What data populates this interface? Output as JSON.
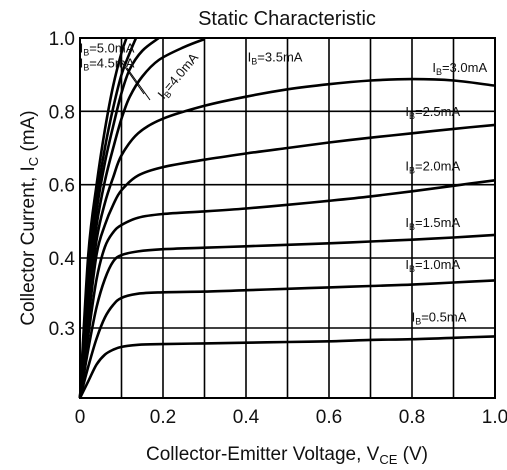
{
  "chart_data": {
    "type": "line",
    "title": "Static Characteristic",
    "xlabel": "Collector-Emitter Voltage, V",
    "xlabel_sub": "CE",
    "xlabel_unit": " (V)",
    "ylabel": "Collector Current, I",
    "ylabel_sub": "C",
    "ylabel_unit": " (mA)",
    "xlim": [
      0,
      1.0
    ],
    "ylim": [
      0.2,
      1.0
    ],
    "grid": true,
    "x_ticks": [
      {
        "value": 0,
        "label": "0"
      },
      {
        "value": 0.2,
        "label": "0.2"
      },
      {
        "value": 0.4,
        "label": "0.4"
      },
      {
        "value": 0.6,
        "label": "0.6"
      },
      {
        "value": 0.8,
        "label": "0.8"
      },
      {
        "value": 1.0,
        "label": "1.0"
      }
    ],
    "y_ticks": [
      {
        "value": 0.3,
        "label": "0.3"
      },
      {
        "value": 0.4,
        "label": "0.4"
      },
      {
        "value": 0.6,
        "label": "0.6"
      },
      {
        "value": 0.8,
        "label": "0.8"
      },
      {
        "value": 1.0,
        "label": "1.0"
      }
    ],
    "series": [
      {
        "name": "I",
        "sub": "B",
        "suffix": "=0.5mA",
        "points": [
          [
            0.0,
            0.2
          ],
          [
            0.02,
            0.224
          ],
          [
            0.04,
            0.248
          ],
          [
            0.06,
            0.262
          ],
          [
            0.08,
            0.269
          ],
          [
            0.1,
            0.273
          ],
          [
            0.14,
            0.276
          ],
          [
            0.2,
            0.277
          ],
          [
            0.3,
            0.278
          ],
          [
            0.4,
            0.279
          ],
          [
            0.5,
            0.28
          ],
          [
            0.6,
            0.281
          ],
          [
            0.7,
            0.283
          ],
          [
            0.8,
            0.284
          ],
          [
            0.9,
            0.286
          ],
          [
            1.0,
            0.288
          ]
        ],
        "label_at": [
          0.865,
          0.309
        ]
      },
      {
        "name": "I",
        "sub": "B",
        "suffix": "=1.0mA",
        "points": [
          [
            0.0,
            0.2
          ],
          [
            0.02,
            0.245
          ],
          [
            0.04,
            0.285
          ],
          [
            0.06,
            0.315
          ],
          [
            0.08,
            0.333
          ],
          [
            0.1,
            0.343
          ],
          [
            0.14,
            0.349
          ],
          [
            0.2,
            0.351
          ],
          [
            0.3,
            0.352
          ],
          [
            0.4,
            0.354
          ],
          [
            0.5,
            0.356
          ],
          [
            0.6,
            0.358
          ],
          [
            0.7,
            0.36
          ],
          [
            0.8,
            0.362
          ],
          [
            0.9,
            0.365
          ],
          [
            1.0,
            0.368
          ]
        ],
        "label_at": [
          0.85,
          0.384
        ]
      },
      {
        "name": "I",
        "sub": "B",
        "suffix": "=1.5mA",
        "points": [
          [
            0.0,
            0.2
          ],
          [
            0.02,
            0.27
          ],
          [
            0.04,
            0.33
          ],
          [
            0.06,
            0.37
          ],
          [
            0.08,
            0.395
          ],
          [
            0.1,
            0.408
          ],
          [
            0.14,
            0.418
          ],
          [
            0.2,
            0.424
          ],
          [
            0.3,
            0.428
          ],
          [
            0.4,
            0.432
          ],
          [
            0.5,
            0.436
          ],
          [
            0.6,
            0.44
          ],
          [
            0.7,
            0.445
          ],
          [
            0.8,
            0.45
          ],
          [
            0.9,
            0.456
          ],
          [
            1.0,
            0.463
          ]
        ],
        "label_at": [
          0.85,
          0.484
        ]
      },
      {
        "name": "I",
        "sub": "B",
        "suffix": "=2.0mA",
        "points": [
          [
            0.0,
            0.2
          ],
          [
            0.02,
            0.29
          ],
          [
            0.04,
            0.37
          ],
          [
            0.06,
            0.43
          ],
          [
            0.08,
            0.47
          ],
          [
            0.1,
            0.49
          ],
          [
            0.14,
            0.51
          ],
          [
            0.2,
            0.52
          ],
          [
            0.3,
            0.527
          ],
          [
            0.4,
            0.535
          ],
          [
            0.5,
            0.545
          ],
          [
            0.6,
            0.556
          ],
          [
            0.7,
            0.568
          ],
          [
            0.8,
            0.582
          ],
          [
            0.9,
            0.597
          ],
          [
            1.0,
            0.612
          ]
        ],
        "label_at": [
          0.85,
          0.638
        ]
      },
      {
        "name": "I",
        "sub": "B",
        "suffix": "=2.5mA",
        "points": [
          [
            0.0,
            0.2
          ],
          [
            0.02,
            0.31
          ],
          [
            0.04,
            0.41
          ],
          [
            0.06,
            0.49
          ],
          [
            0.08,
            0.545
          ],
          [
            0.1,
            0.585
          ],
          [
            0.14,
            0.625
          ],
          [
            0.2,
            0.648
          ],
          [
            0.3,
            0.668
          ],
          [
            0.4,
            0.685
          ],
          [
            0.5,
            0.7
          ],
          [
            0.6,
            0.715
          ],
          [
            0.7,
            0.728
          ],
          [
            0.8,
            0.74
          ],
          [
            0.9,
            0.752
          ],
          [
            1.0,
            0.763
          ]
        ],
        "label_at": [
          0.85,
          0.787
        ]
      },
      {
        "name": "I",
        "sub": "B",
        "suffix": "=3.0mA",
        "points": [
          [
            0.0,
            0.2
          ],
          [
            0.02,
            0.33
          ],
          [
            0.04,
            0.45
          ],
          [
            0.06,
            0.55
          ],
          [
            0.08,
            0.62
          ],
          [
            0.1,
            0.68
          ],
          [
            0.14,
            0.74
          ],
          [
            0.2,
            0.78
          ],
          [
            0.3,
            0.815
          ],
          [
            0.4,
            0.84
          ],
          [
            0.5,
            0.86
          ],
          [
            0.6,
            0.874
          ],
          [
            0.7,
            0.884
          ],
          [
            0.8,
            0.888
          ],
          [
            0.9,
            0.884
          ],
          [
            1.0,
            0.87
          ]
        ],
        "label_at": [
          0.915,
          0.907
        ]
      },
      {
        "name": "I",
        "sub": "B",
        "suffix": "=3.5mA",
        "points": [
          [
            0.0,
            0.2
          ],
          [
            0.02,
            0.35
          ],
          [
            0.04,
            0.49
          ],
          [
            0.06,
            0.61
          ],
          [
            0.08,
            0.7
          ],
          [
            0.1,
            0.78
          ],
          [
            0.12,
            0.84
          ],
          [
            0.15,
            0.895
          ],
          [
            0.19,
            0.94
          ],
          [
            0.25,
            0.975
          ],
          [
            0.3,
            0.997
          ]
        ],
        "label_at": [
          0.47,
          0.936
        ]
      },
      {
        "name": "I",
        "sub": "B",
        "suffix": "=4.0mA",
        "points": [
          [
            0.0,
            0.2
          ],
          [
            0.02,
            0.37
          ],
          [
            0.04,
            0.53
          ],
          [
            0.06,
            0.66
          ],
          [
            0.08,
            0.76
          ],
          [
            0.1,
            0.85
          ],
          [
            0.12,
            0.915
          ],
          [
            0.15,
            0.965
          ],
          [
            0.19,
            1.0
          ]
        ],
        "label_at": [
          0.244,
          0.889
        ]
      },
      {
        "name": "I",
        "sub": "B",
        "suffix": "=4.5mA",
        "points": [
          [
            0.0,
            0.2
          ],
          [
            0.02,
            0.39
          ],
          [
            0.04,
            0.56
          ],
          [
            0.06,
            0.7
          ],
          [
            0.08,
            0.81
          ],
          [
            0.1,
            0.9
          ],
          [
            0.12,
            0.96
          ],
          [
            0.135,
            1.0
          ]
        ],
        "label_at": [
          0.065,
          0.919
        ]
      },
      {
        "name": "I",
        "sub": "B",
        "suffix": "=5.0mA",
        "points": [
          [
            0.0,
            0.2
          ],
          [
            0.02,
            0.41
          ],
          [
            0.04,
            0.6
          ],
          [
            0.06,
            0.75
          ],
          [
            0.08,
            0.87
          ],
          [
            0.1,
            0.96
          ],
          [
            0.112,
            1.0
          ]
        ],
        "label_at": [
          0.065,
          0.961
        ]
      }
    ]
  }
}
